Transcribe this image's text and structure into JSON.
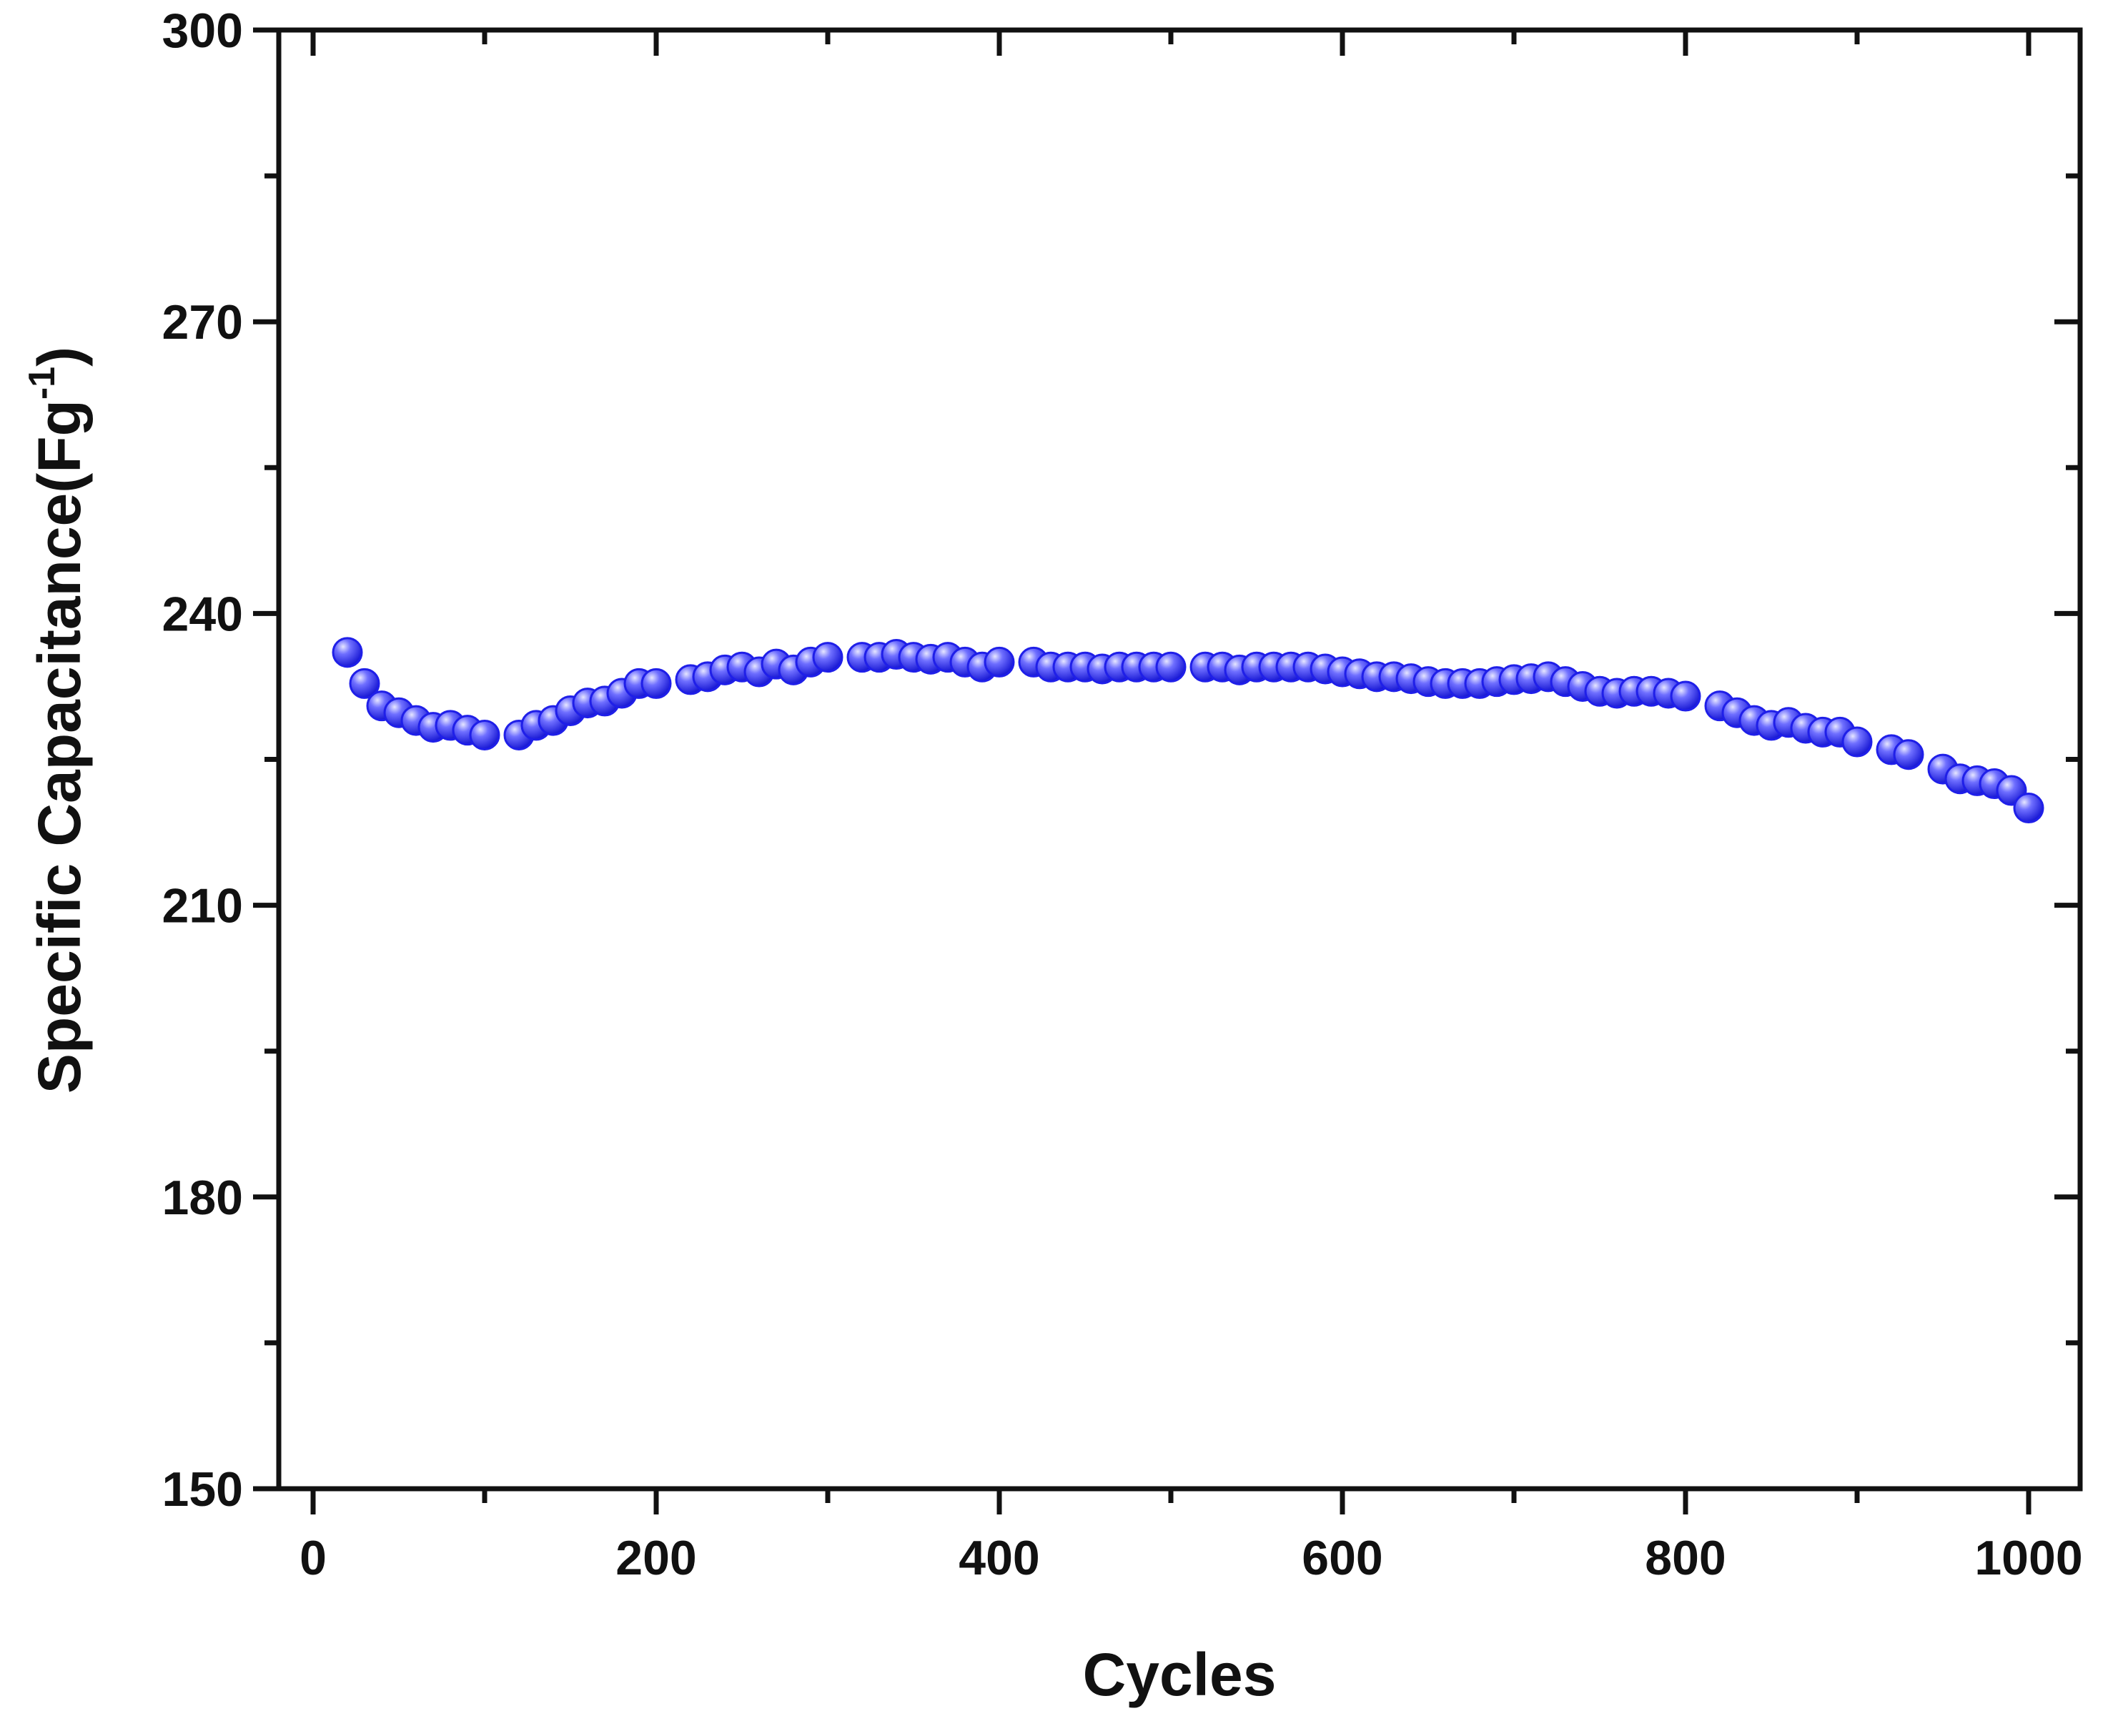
{
  "chart_data": {
    "type": "scatter",
    "title": "",
    "xlabel": "Cycles",
    "ylabel": {
      "main": "Specific Capacitance(Fg",
      "superscript": "-1",
      "close": ")"
    },
    "xlim": [
      -20,
      1030
    ],
    "ylim": [
      150,
      300
    ],
    "x_ticks": [
      0,
      200,
      400,
      600,
      800,
      1000
    ],
    "x_tick_labels": [
      "0",
      "200",
      "400",
      "600",
      "800",
      "1000"
    ],
    "x_minor_ticks": [
      100,
      300,
      500,
      700,
      900
    ],
    "y_ticks": [
      150,
      180,
      210,
      240,
      270,
      300
    ],
    "y_tick_labels": [
      "150",
      "180",
      "210",
      "240",
      "270",
      "300"
    ],
    "y_minor_ticks": [
      165,
      195,
      225,
      255,
      285
    ],
    "grid": false,
    "legend": "none",
    "marker_color": "#1f1fe8",
    "marker_highlight": "#c9c9ff",
    "axis_color": "#111111",
    "series": [
      {
        "x": [
          20,
          30,
          40,
          50,
          60,
          70,
          80,
          90,
          100,
          120,
          130,
          140,
          150,
          160,
          170,
          180,
          190,
          200,
          220,
          230,
          240,
          250,
          260,
          270,
          280,
          290,
          300,
          320,
          330,
          340,
          350,
          360,
          370,
          380,
          390,
          400,
          420,
          430,
          440,
          450,
          460,
          470,
          480,
          490,
          500,
          520,
          530,
          540,
          550,
          560,
          570,
          580,
          590,
          600,
          610,
          620,
          630,
          640,
          650,
          660,
          670,
          680,
          690,
          700,
          710,
          720,
          730,
          740,
          750,
          760,
          770,
          780,
          790,
          800,
          820,
          830,
          840,
          850,
          860,
          870,
          880,
          890,
          900,
          920,
          930,
          950,
          960,
          970,
          980,
          990,
          1000
        ],
        "y": [
          236.0,
          232.8,
          230.5,
          229.8,
          229.0,
          228.3,
          228.5,
          228.0,
          227.5,
          227.5,
          228.5,
          229.0,
          230.0,
          230.8,
          231.0,
          231.8,
          232.8,
          232.8,
          233.2,
          233.5,
          234.2,
          234.5,
          234.0,
          234.8,
          234.2,
          235.0,
          235.5,
          235.5,
          235.5,
          235.8,
          235.5,
          235.3,
          235.5,
          235.0,
          234.5,
          235.0,
          235.0,
          234.5,
          234.5,
          234.5,
          234.3,
          234.5,
          234.5,
          234.5,
          234.5,
          234.5,
          234.5,
          234.2,
          234.5,
          234.5,
          234.5,
          234.5,
          234.3,
          234.0,
          233.8,
          233.5,
          233.5,
          233.3,
          233.0,
          232.8,
          232.8,
          232.8,
          233.0,
          233.2,
          233.3,
          233.5,
          233.0,
          232.5,
          232.0,
          231.8,
          232.0,
          232.0,
          231.8,
          231.5,
          230.5,
          229.8,
          229.0,
          228.5,
          228.8,
          228.2,
          227.8,
          227.8,
          226.8,
          226.0,
          225.5,
          224.0,
          223.0,
          222.8,
          222.5,
          221.8,
          220.0
        ]
      }
    ]
  }
}
